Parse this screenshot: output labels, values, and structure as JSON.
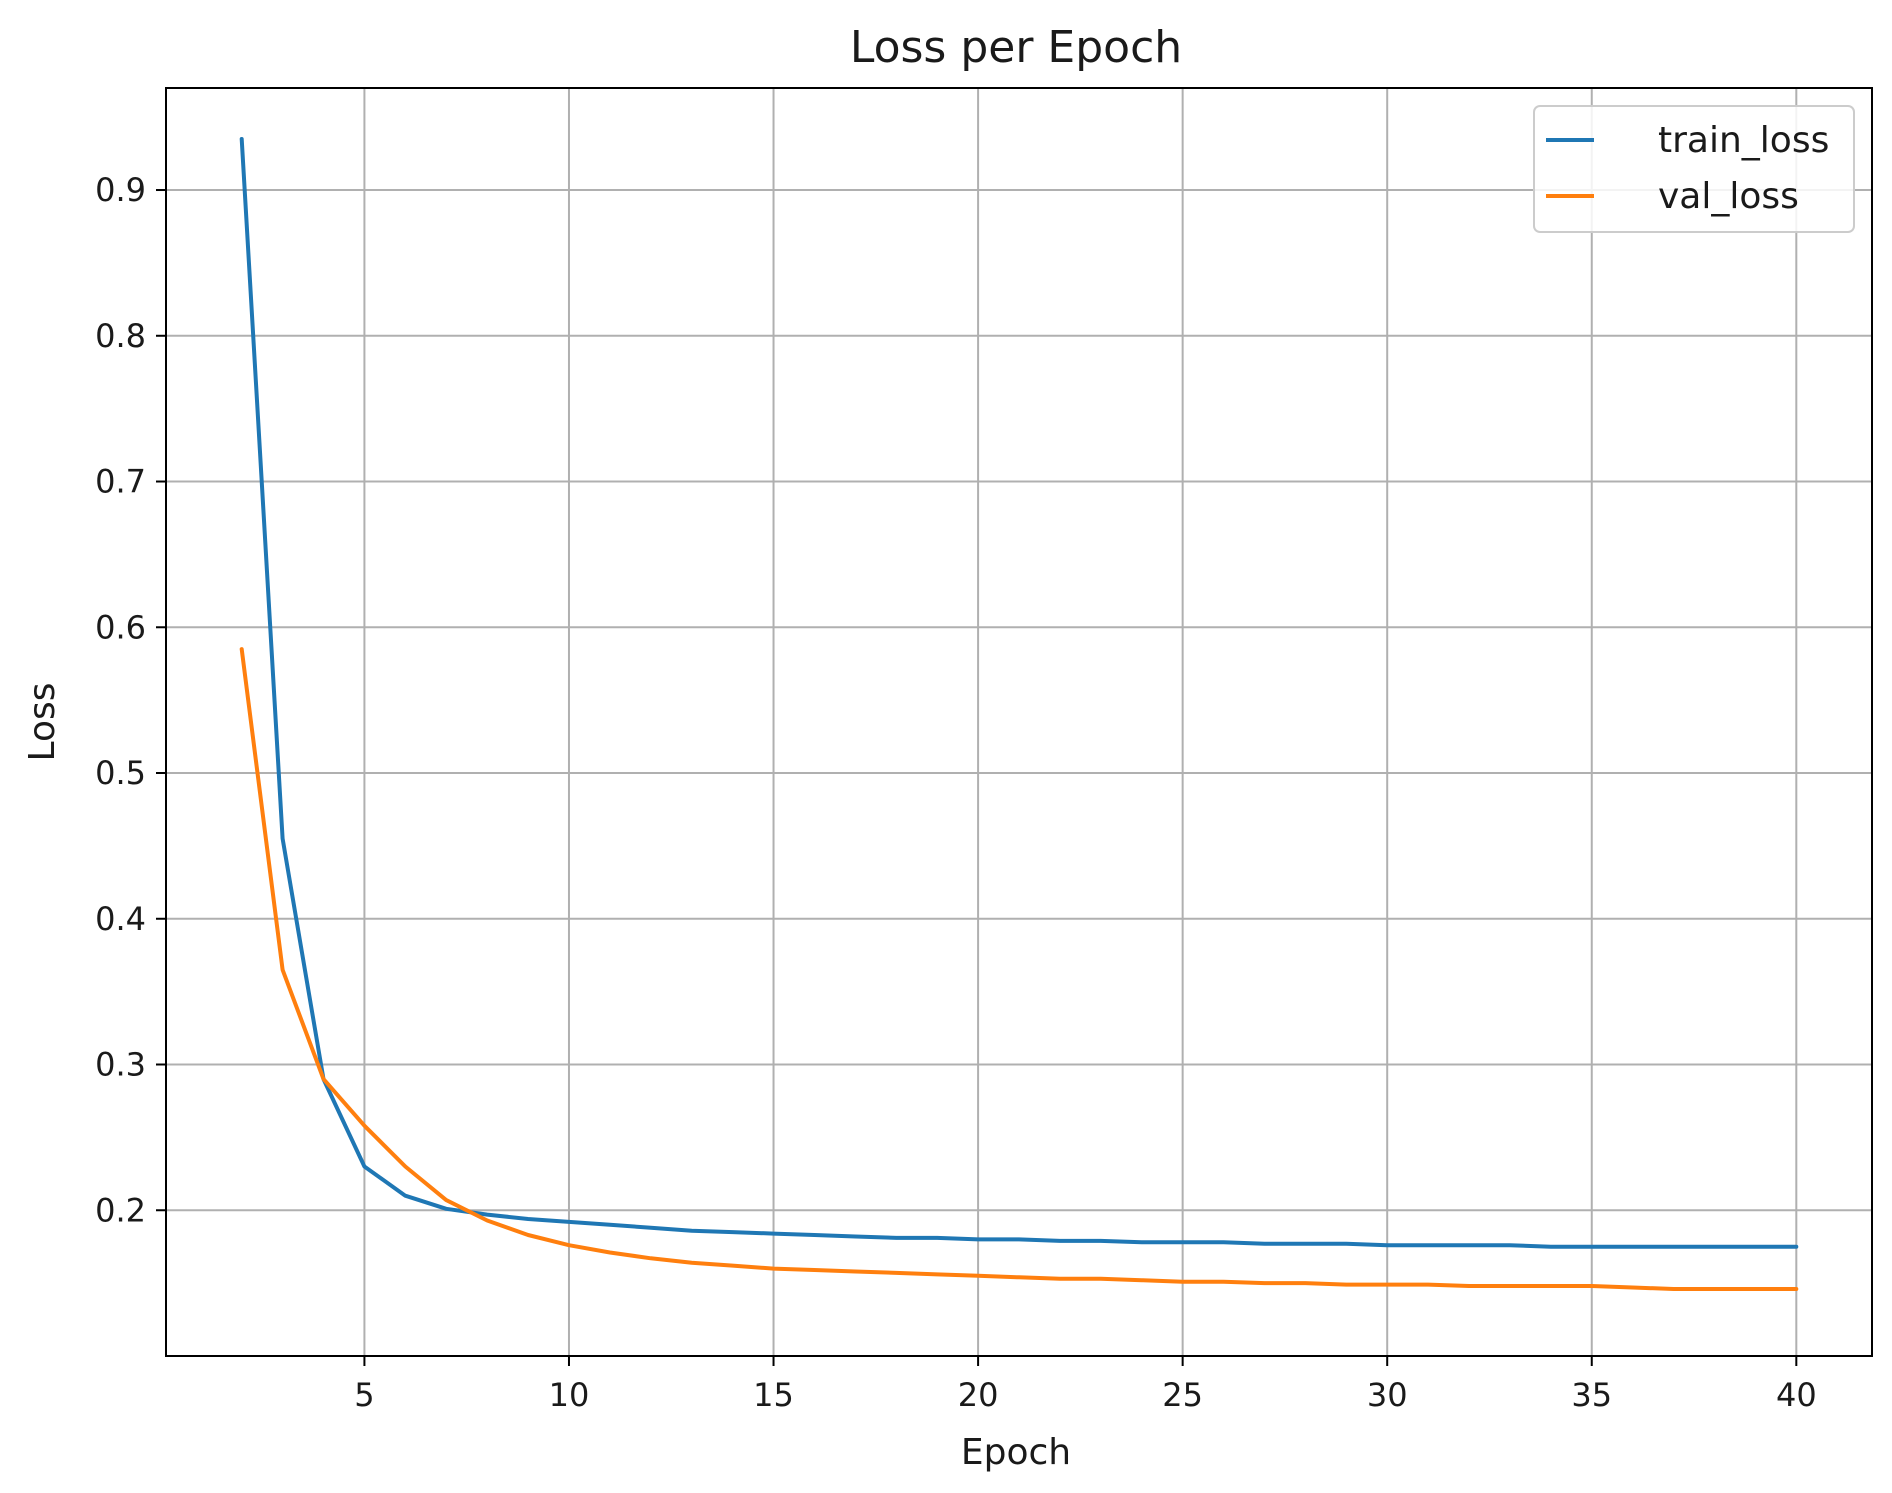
{
  "chart_data": {
    "type": "line",
    "title": "Loss per Epoch",
    "xlabel": "Epoch",
    "ylabel": "Loss",
    "xlim": [
      0.15,
      41.85
    ],
    "ylim": [
      0.1,
      0.97
    ],
    "xticks": [
      "5",
      "10",
      "15",
      "20",
      "25",
      "30",
      "35",
      "40"
    ],
    "yticks": [
      "0.2",
      "0.3",
      "0.4",
      "0.5",
      "0.6",
      "0.7",
      "0.8",
      "0.9"
    ],
    "grid": true,
    "legend_position": "top-right",
    "x": [
      2,
      3,
      4,
      5,
      6,
      7,
      8,
      9,
      10,
      11,
      12,
      13,
      14,
      15,
      16,
      17,
      18,
      19,
      20,
      21,
      22,
      23,
      24,
      25,
      26,
      27,
      28,
      29,
      30,
      31,
      32,
      33,
      34,
      35,
      36,
      37,
      38,
      39,
      40
    ],
    "series": [
      {
        "name": "train_loss",
        "color": "#1f77b4",
        "values": [
          0.935,
          0.455,
          0.29,
          0.23,
          0.21,
          0.201,
          0.197,
          0.194,
          0.192,
          0.19,
          0.188,
          0.186,
          0.185,
          0.184,
          0.183,
          0.182,
          0.181,
          0.181,
          0.18,
          0.18,
          0.179,
          0.179,
          0.178,
          0.178,
          0.178,
          0.177,
          0.177,
          0.177,
          0.176,
          0.176,
          0.176,
          0.176,
          0.175,
          0.175,
          0.175,
          0.175,
          0.175,
          0.175,
          0.175
        ]
      },
      {
        "name": "val_loss",
        "color": "#ff7f0e",
        "values": [
          0.585,
          0.365,
          0.29,
          0.258,
          0.23,
          0.207,
          0.193,
          0.183,
          0.176,
          0.171,
          0.167,
          0.164,
          0.162,
          0.16,
          0.159,
          0.158,
          0.157,
          0.156,
          0.155,
          0.154,
          0.153,
          0.153,
          0.152,
          0.151,
          0.151,
          0.15,
          0.15,
          0.149,
          0.149,
          0.149,
          0.148,
          0.148,
          0.148,
          0.148,
          0.147,
          0.146,
          0.146,
          0.146,
          0.146
        ]
      }
    ]
  }
}
